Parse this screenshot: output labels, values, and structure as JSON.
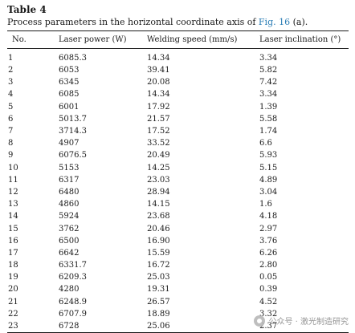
{
  "table": {
    "label": "Table 4",
    "caption_prefix": "Process parameters in the horizontal coordinate axis of ",
    "caption_ref": "Fig. 16",
    "caption_suffix": " (a).",
    "headers": [
      "No.",
      "Laser power (W)",
      "Welding speed (mm/s)",
      "Laser inclination (°)"
    ],
    "rows": [
      [
        "1",
        "6085.3",
        "14.34",
        "3.34"
      ],
      [
        "2",
        "6053",
        "39.41",
        "5.82"
      ],
      [
        "3",
        "6345",
        "20.08",
        "7.42"
      ],
      [
        "4",
        "6085",
        "14.34",
        "3.34"
      ],
      [
        "5",
        "6001",
        "17.92",
        "1.39"
      ],
      [
        "6",
        "5013.7",
        "21.57",
        "5.58"
      ],
      [
        "7",
        "3714.3",
        "17.52",
        "1.74"
      ],
      [
        "8",
        "4907",
        "33.52",
        "6.6"
      ],
      [
        "9",
        "6076.5",
        "20.49",
        "5.93"
      ],
      [
        "10",
        "5153",
        "14.25",
        "5.15"
      ],
      [
        "11",
        "6317",
        "23.03",
        "4.89"
      ],
      [
        "12",
        "6480",
        "28.94",
        "3.04"
      ],
      [
        "13",
        "4860",
        "14.15",
        "1.6"
      ],
      [
        "14",
        "5924",
        "23.68",
        "4.18"
      ],
      [
        "15",
        "3762",
        "20.46",
        "2.97"
      ],
      [
        "16",
        "6500",
        "16.90",
        "3.76"
      ],
      [
        "17",
        "6642",
        "15.59",
        "6.26"
      ],
      [
        "18",
        "6331.7",
        "16.72",
        "2.80"
      ],
      [
        "19",
        "6209.3",
        "25.03",
        "0.05"
      ],
      [
        "20",
        "4280",
        "19.31",
        "0.39"
      ],
      [
        "21",
        "6248.9",
        "26.57",
        "4.52"
      ],
      [
        "22",
        "6707.9",
        "18.89",
        "3.32"
      ],
      [
        "23",
        "6728",
        "25.06",
        "2.37"
      ]
    ]
  },
  "watermark": {
    "text": "公众号 · 激光制造研究",
    "icon": "wechat-logo-icon"
  },
  "colors": {
    "link": "#2a7db5",
    "text": "#1a1a1a"
  }
}
